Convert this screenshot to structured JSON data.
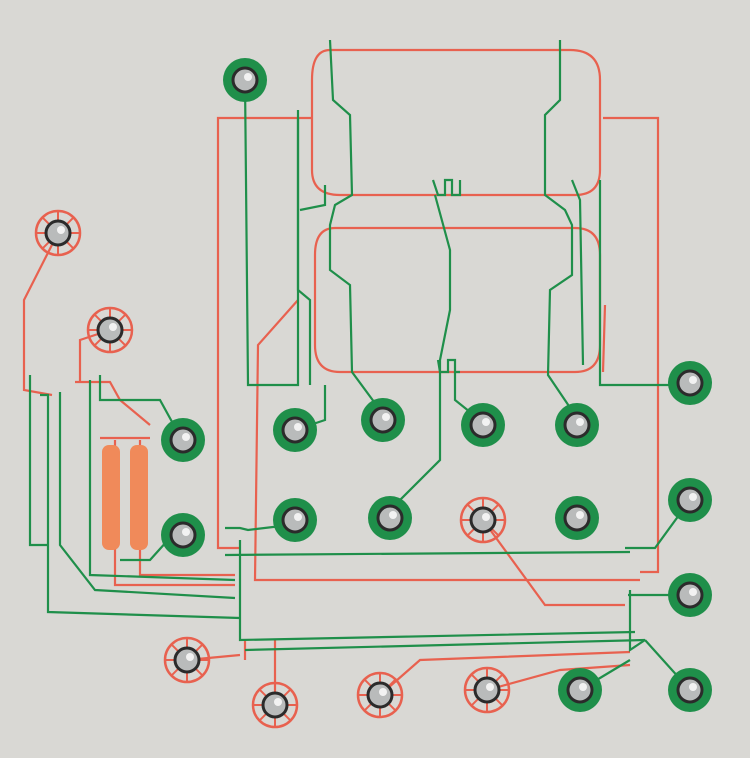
{
  "image": {
    "subject": "circuit-board-photo",
    "colors": {
      "background": "#d9d8d4",
      "red_trace": "#e8614f",
      "green_trace": "#1f8f4a",
      "resistor": "#f08a5a",
      "pin": "#b9bbbb"
    },
    "pads": [
      {
        "id": "p1",
        "color": "green"
      },
      {
        "id": "p2",
        "color": "red"
      },
      {
        "id": "p3",
        "color": "red"
      },
      {
        "id": "p4",
        "color": "green"
      },
      {
        "id": "p5",
        "color": "green"
      },
      {
        "id": "p6",
        "color": "green"
      },
      {
        "id": "p7",
        "color": "green"
      },
      {
        "id": "p8",
        "color": "green"
      },
      {
        "id": "p9",
        "color": "green"
      },
      {
        "id": "p10",
        "color": "green"
      },
      {
        "id": "p11",
        "color": "green"
      },
      {
        "id": "p12",
        "color": "green"
      },
      {
        "id": "p13",
        "color": "red"
      },
      {
        "id": "p14",
        "color": "green"
      },
      {
        "id": "p15",
        "color": "green"
      },
      {
        "id": "p16",
        "color": "green"
      },
      {
        "id": "p17",
        "color": "red"
      },
      {
        "id": "p18",
        "color": "red"
      },
      {
        "id": "p19",
        "color": "red"
      },
      {
        "id": "p20",
        "color": "red"
      },
      {
        "id": "p21",
        "color": "green"
      },
      {
        "id": "p22",
        "color": "green"
      }
    ]
  }
}
